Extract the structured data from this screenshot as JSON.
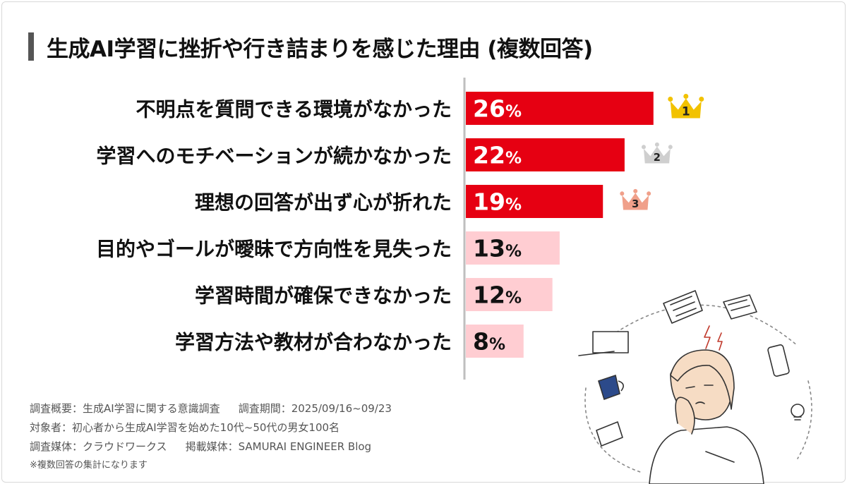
{
  "title": "生成AI学習に挫折や行き詰まりを感じた理由 (複数回答)",
  "chart_data": {
    "type": "bar",
    "orientation": "horizontal",
    "title": "生成AI学習に挫折や行き詰まりを感じた理由 (複数回答)",
    "categories": [
      "不明点を質問できる環境がなかった",
      "学習へのモチベーションが続かなかった",
      "理想の回答が出ず心が折れた",
      "目的やゴールが曖昧で方向性を見失った",
      "学習時間が確保できなかった",
      "学習方法や教材が合わなかった"
    ],
    "values": [
      26,
      22,
      19,
      13,
      12,
      8
    ],
    "value_labels": [
      "26%",
      "22%",
      "19%",
      "13%",
      "12%",
      "8%"
    ],
    "unit": "%",
    "xlim": [
      0,
      45
    ],
    "rank_badges": [
      "1",
      "2",
      "3"
    ],
    "colors": {
      "top3": "#e60012",
      "rest": "#ffcdd2",
      "label_on_top3": "#ffffff",
      "label_on_rest": "#111111",
      "crown_1": "#f2c200",
      "crown_2": "#cfcfcf",
      "crown_3": "#f0a08a",
      "axis": "#bfbfbf"
    }
  },
  "notes": {
    "survey_overview": "調査概要：生成AI学習に関する意識調査",
    "survey_period": "調査期間：2025/09/16~09/23",
    "subjects": "対象者：初心者から生成AI学習を始めた10代~50代の男女100名",
    "survey_media": "調査媒体：クラウドワークス",
    "published_media": "掲載媒体：SAMURAI ENGINEER Blog",
    "multi_answer_note": "※複数回答の集計になります"
  }
}
